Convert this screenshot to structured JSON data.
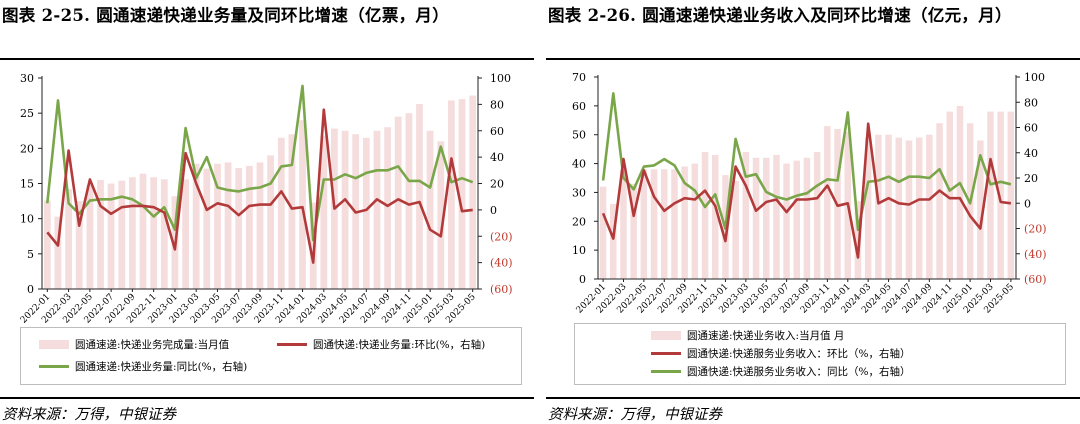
{
  "colors": {
    "bar": "#f6dddd",
    "mom": "#b33a3a",
    "yoy": "#7aa64a"
  },
  "charts": [
    {
      "title": "图表 2-25. 圆通速递快递业务量及同环比增速（亿票，月）",
      "source": "资料来源：万得，中银证券",
      "left_axis": {
        "min": 0,
        "max": 30,
        "ticks": [
          "0",
          "5",
          "10",
          "15",
          "20",
          "25",
          "30"
        ]
      },
      "right_axis": {
        "min": -60,
        "max": 100,
        "ticks": [
          "(60)",
          "(40)",
          "(20)",
          "0",
          "20",
          "40",
          "60",
          "80",
          "100"
        ]
      },
      "x_tick_labels": [
        "2022-01",
        "2022-03",
        "2022-05",
        "2022-07",
        "2022-09",
        "2022-11",
        "2023-01",
        "2023-03",
        "2023-05",
        "2023-07",
        "2023-09",
        "2023-11",
        "2024-01",
        "2024-03",
        "2024-05",
        "2024-07",
        "2024-09",
        "2024-11",
        "2025-01",
        "2025-03",
        "2025-05"
      ],
      "legend": [
        "圆通速递:快递业务完成量:当月值",
        "圆通快递:快递业务量:环比(%，右轴)",
        "圆通速递:快递业务量:同比(%，右轴)"
      ]
    },
    {
      "title": "图表 2-26. 圆通速递快递业务收入及同环比增速（亿元，月）",
      "source": "资料来源：万得，中银证券",
      "left_axis": {
        "min": 0,
        "max": 70,
        "ticks": [
          "0",
          "10",
          "20",
          "30",
          "40",
          "50",
          "60",
          "70"
        ]
      },
      "right_axis": {
        "min": -60,
        "max": 100,
        "ticks": [
          "(60)",
          "(40)",
          "(20)",
          "0",
          "20",
          "40",
          "60",
          "80",
          "100"
        ]
      },
      "x_tick_labels": [
        "2022-01",
        "2022-03",
        "2022-05",
        "2022-07",
        "2022-09",
        "2022-11",
        "2023-01",
        "2023-03",
        "2023-05",
        "2023-07",
        "2023-09",
        "2023-11",
        "2024-01",
        "2024-03",
        "2024-05",
        "2024-07",
        "2024-09",
        "2024-11",
        "2025-01",
        "2025-03",
        "2025-05"
      ],
      "legend": [
        "圆通速递:快递业务收入:当月值 月",
        "圆通快递:快递服务业务收入：环比（%，右轴）",
        "圆通快递:快递服务业务收入：同比（%，右轴）"
      ]
    }
  ],
  "chart_data": [
    {
      "type": "bar",
      "title": "图表 2-25. 圆通速递快递业务量及同环比增速（亿票，月）",
      "categories": [
        "2022-01",
        "2022-02",
        "2022-03",
        "2022-04",
        "2022-05",
        "2022-06",
        "2022-07",
        "2022-08",
        "2022-09",
        "2022-10",
        "2022-11",
        "2022-12",
        "2023-01",
        "2023-02",
        "2023-03",
        "2023-04",
        "2023-05",
        "2023-06",
        "2023-07",
        "2023-08",
        "2023-09",
        "2023-10",
        "2023-11",
        "2023-12",
        "2024-01",
        "2024-02",
        "2024-03",
        "2024-04",
        "2024-05",
        "2024-06",
        "2024-07",
        "2024-08",
        "2024-09",
        "2024-10",
        "2024-11",
        "2024-12",
        "2025-01",
        "2025-02",
        "2025-03",
        "2025-04",
        "2025-05"
      ],
      "series": [
        {
          "name": "圆通速递:快递业务完成量:当月值",
          "axis": "left",
          "type": "bar",
          "values": [
            12.6,
            10.3,
            14.2,
            12.5,
            14.8,
            15.5,
            15.0,
            15.4,
            15.9,
            16.4,
            15.9,
            15.6,
            13.2,
            15.6,
            17.8,
            17.1,
            17.8,
            18.0,
            17.2,
            17.5,
            18.0,
            19.0,
            21.5,
            22.0,
            24.0,
            12.3,
            21.8,
            22.8,
            22.5,
            22.0,
            21.5,
            22.5,
            23.0,
            24.5,
            25.0,
            26.3,
            22.5,
            21.0,
            26.8,
            27.0,
            27.5
          ]
        },
        {
          "name": "圆通快递:快递业务量:环比(%，右轴)",
          "axis": "right",
          "type": "line",
          "values": [
            -17,
            -27,
            45,
            -12,
            23,
            3,
            -3,
            2,
            3,
            3,
            2,
            -2,
            -30,
            43,
            20,
            0,
            5,
            3,
            -4,
            3,
            4,
            4,
            14,
            1,
            2,
            -40,
            76,
            1,
            8,
            -2,
            0,
            8,
            3,
            8,
            4,
            6,
            -15,
            -20,
            39,
            -1,
            0
          ]
        },
        {
          "name": "圆通速递:快递业务量:同比(%，右轴)",
          "axis": "right",
          "type": "line",
          "values": [
            5,
            83,
            5,
            -3,
            7,
            8,
            8,
            10,
            8,
            3,
            -5,
            2,
            -15,
            62,
            24,
            40,
            17,
            15,
            14,
            16,
            17,
            20,
            33,
            34,
            94,
            -23,
            23,
            23,
            27,
            24,
            28,
            30,
            30,
            33,
            22,
            22,
            17,
            48,
            21,
            24,
            21
          ]
        }
      ],
      "ylim_left": [
        0,
        30
      ],
      "ylim_right": [
        -60,
        100
      ]
    },
    {
      "type": "bar",
      "title": "图表 2-26. 圆通速递快递业务收入及同环比增速（亿元，月）",
      "categories": [
        "2022-01",
        "2022-02",
        "2022-03",
        "2022-04",
        "2022-05",
        "2022-06",
        "2022-07",
        "2022-08",
        "2022-09",
        "2022-10",
        "2022-11",
        "2022-12",
        "2023-01",
        "2023-02",
        "2023-03",
        "2023-04",
        "2023-05",
        "2023-06",
        "2023-07",
        "2023-08",
        "2023-09",
        "2023-10",
        "2023-11",
        "2023-12",
        "2024-01",
        "2024-02",
        "2024-03",
        "2024-04",
        "2024-05",
        "2024-06",
        "2024-07",
        "2024-08",
        "2024-09",
        "2024-10",
        "2024-11",
        "2024-12",
        "2025-01",
        "2025-02",
        "2025-03",
        "2025-04",
        "2025-05"
      ],
      "series": [
        {
          "name": "圆通速递:快递业务收入:当月值 月",
          "axis": "left",
          "type": "bar",
          "values": [
            32,
            26,
            38,
            33,
            38,
            38,
            38,
            38,
            39,
            40,
            44,
            43,
            36,
            34,
            44,
            42,
            42,
            43,
            40,
            41,
            42,
            44,
            53,
            52,
            51,
            27,
            49,
            50,
            50,
            49,
            48,
            49,
            50,
            54,
            58,
            60,
            54,
            48,
            58,
            58,
            58
          ]
        },
        {
          "name": "圆通快递:快递服务业务收入：环比（%，右轴）",
          "axis": "right",
          "type": "line",
          "values": [
            -8,
            -28,
            35,
            -10,
            26,
            5,
            -6,
            0,
            4,
            3,
            10,
            -2,
            -30,
            29,
            14,
            -6,
            1,
            3,
            -7,
            3,
            3,
            4,
            14,
            -2,
            0,
            -43,
            63,
            0,
            4,
            0,
            -1,
            3,
            3,
            10,
            4,
            4,
            -10,
            -20,
            35,
            1,
            0
          ]
        },
        {
          "name": "圆通快递:快递服务业务收入：同比（%，右轴）",
          "axis": "right",
          "type": "line",
          "values": [
            18,
            87,
            20,
            11,
            29,
            30,
            35,
            30,
            16,
            10,
            -3,
            7,
            -20,
            51,
            21,
            23,
            9,
            5,
            3,
            6,
            8,
            14,
            19,
            18,
            72,
            -21,
            17,
            18,
            21,
            17,
            21,
            21,
            20,
            27,
            10,
            16,
            0,
            38,
            15,
            17,
            15
          ]
        }
      ],
      "ylim_left": [
        0,
        70
      ],
      "ylim_right": [
        -60,
        100
      ]
    }
  ]
}
